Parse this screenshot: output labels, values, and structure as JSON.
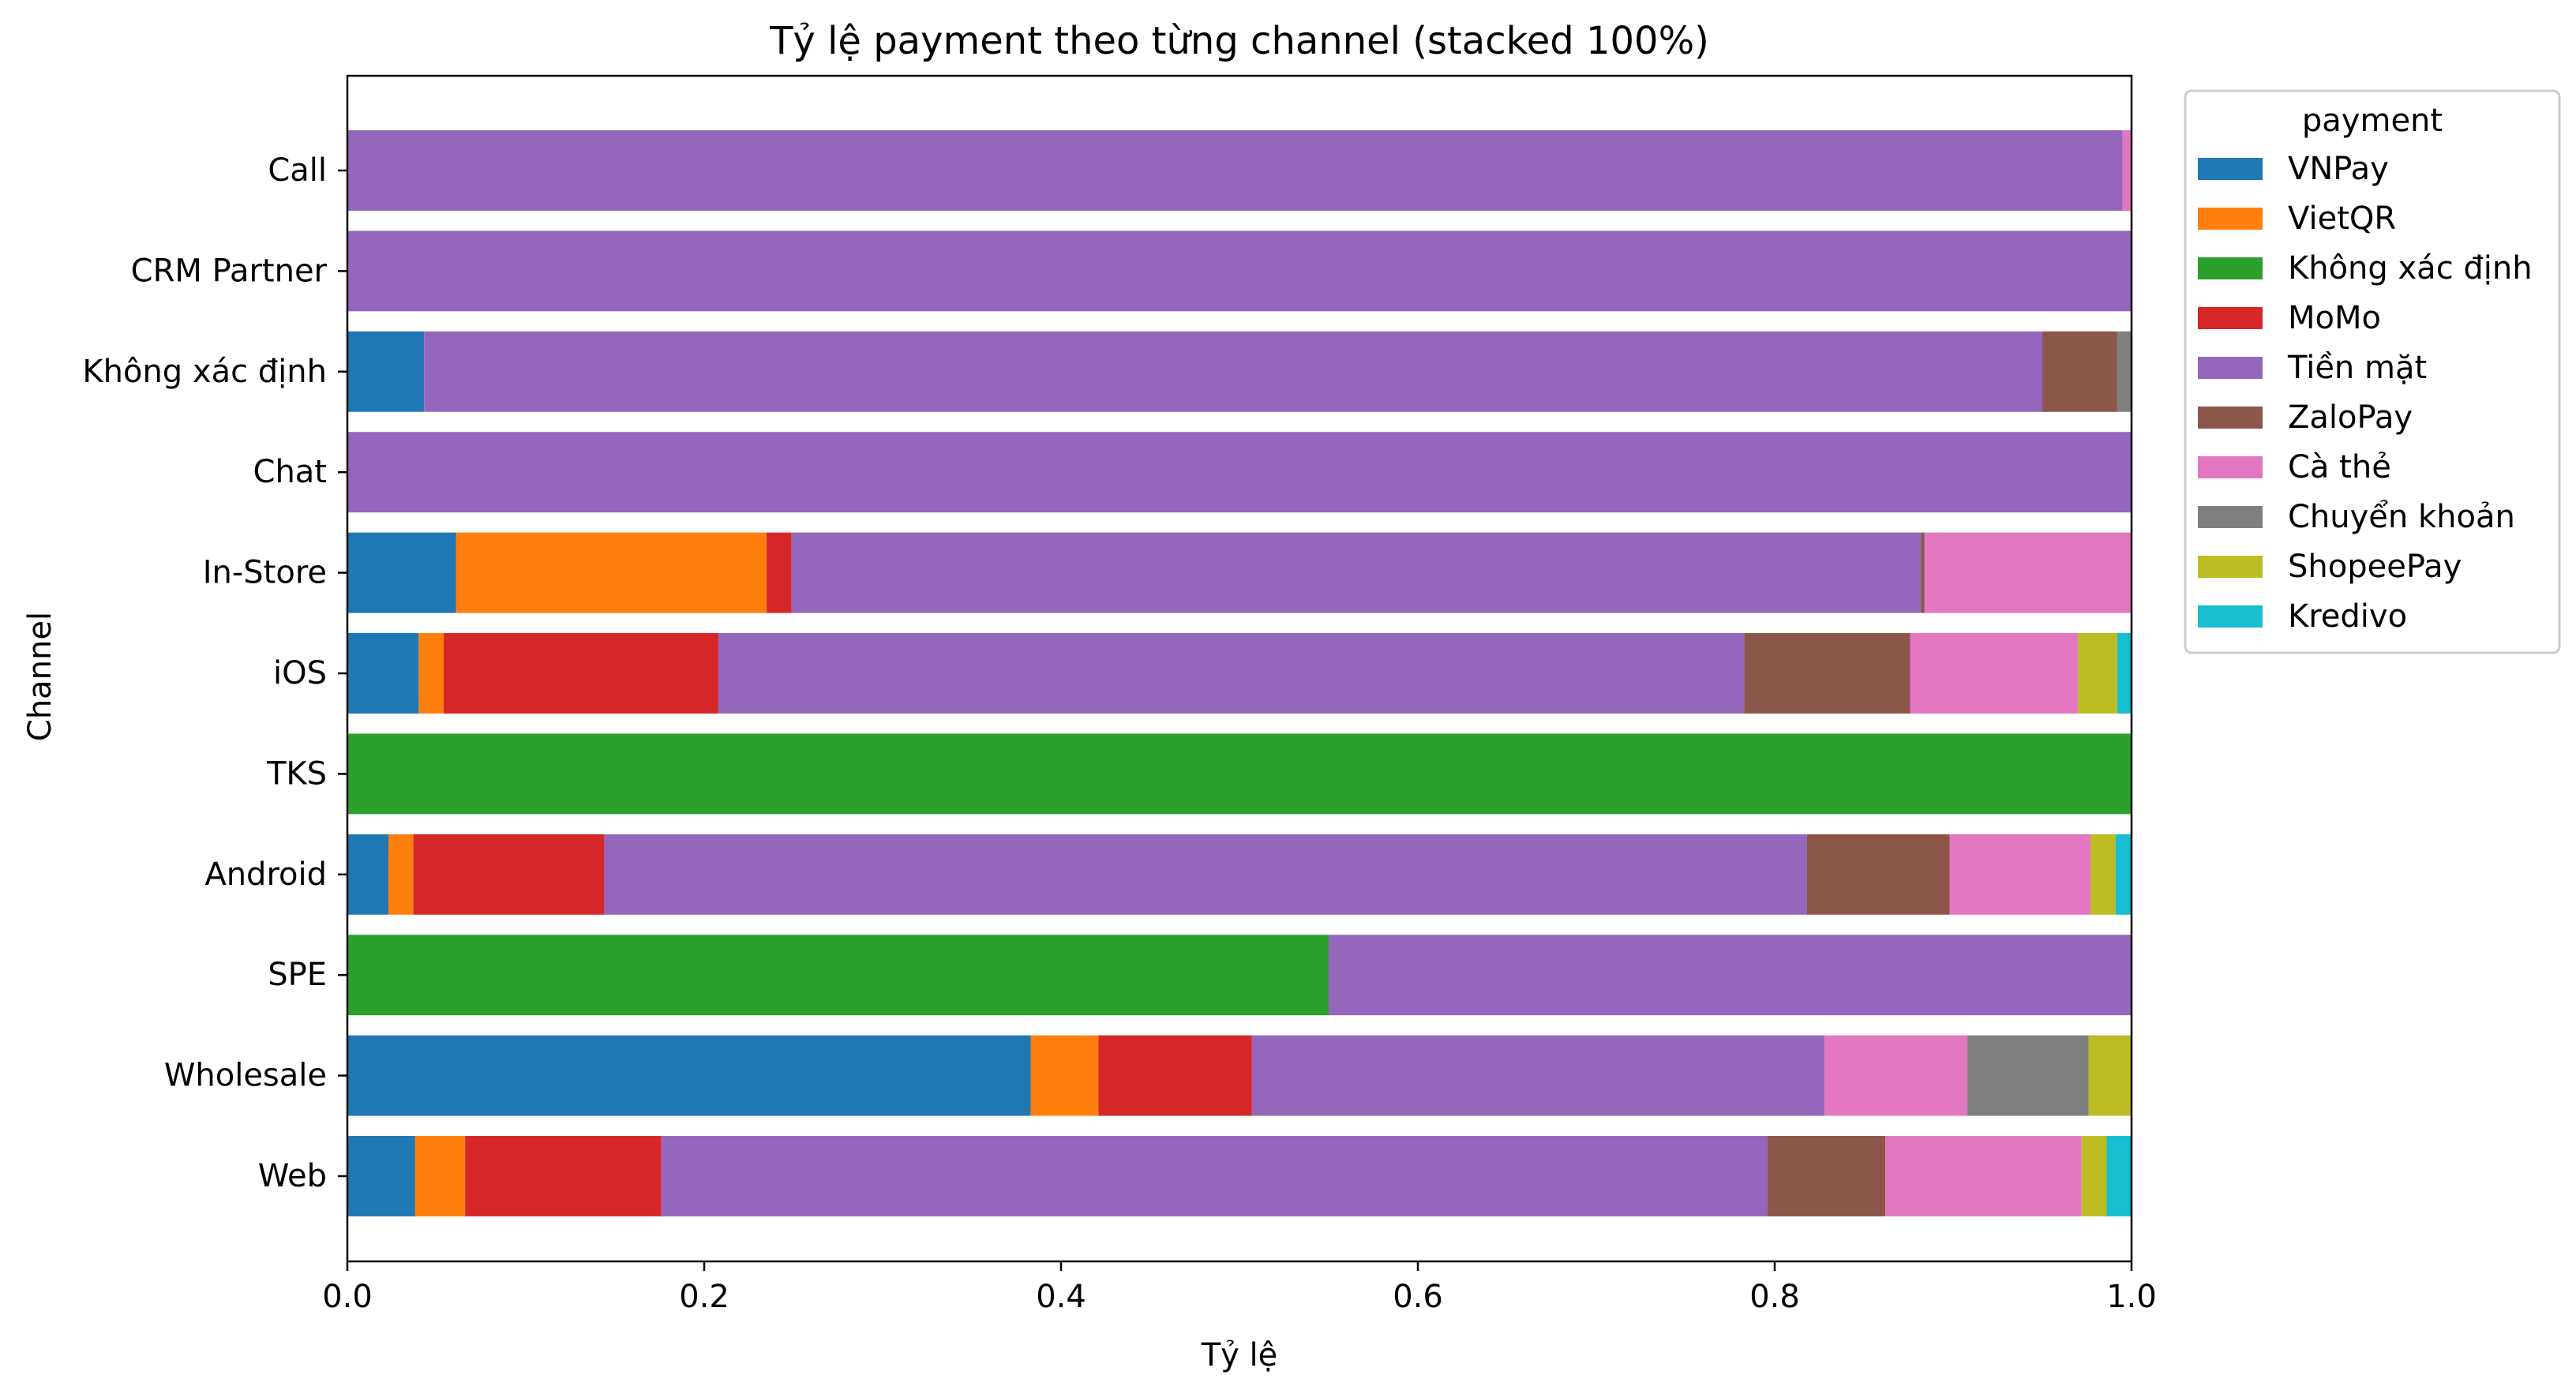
{
  "chart_data": {
    "type": "bar",
    "orientation": "horizontal",
    "stacked": "100%",
    "title": "Tỷ lệ payment theo từng channel (stacked 100%)",
    "xlabel": "Tỷ lệ",
    "ylabel": "Channel",
    "xlim": [
      0,
      1
    ],
    "xticks": [
      "0.0",
      "0.2",
      "0.4",
      "0.6",
      "0.8",
      "1.0"
    ],
    "grid": false,
    "legend_title": "payment",
    "legend_position": "outside-top-right",
    "categories": [
      "Call",
      "CRM Partner",
      "Không xác định",
      "Chat",
      "In-Store",
      "iOS",
      "TKS",
      "Android",
      "SPE",
      "Wholesale",
      "Web"
    ],
    "series": [
      {
        "name": "VNPay",
        "color": "#1f77b4",
        "values": [
          0,
          0,
          0.043,
          0,
          0.061,
          0.04,
          0,
          0.023,
          0,
          0.383,
          0.038
        ]
      },
      {
        "name": "VietQR",
        "color": "#ff7f0e",
        "values": [
          0,
          0,
          0,
          0,
          0.174,
          0.014,
          0,
          0.014,
          0,
          0.038,
          0.028
        ]
      },
      {
        "name": "Không xác định",
        "color": "#2ca02c",
        "values": [
          0,
          0,
          0,
          0,
          0,
          0,
          1.0,
          0,
          0.55,
          0,
          0
        ]
      },
      {
        "name": "MoMo",
        "color": "#d62728",
        "values": [
          0,
          0,
          0,
          0,
          0.014,
          0.154,
          0,
          0.107,
          0,
          0.086,
          0.11
        ]
      },
      {
        "name": "Tiền mặt",
        "color": "#9467bd",
        "values": [
          0.995,
          1.0,
          0.907,
          1.0,
          0.633,
          0.575,
          0,
          0.674,
          0.45,
          0.321,
          0.62
        ]
      },
      {
        "name": "ZaloPay",
        "color": "#8c564b",
        "values": [
          0,
          0,
          0.042,
          0,
          0.002,
          0.093,
          0,
          0.08,
          0,
          0,
          0.066
        ]
      },
      {
        "name": "Cà thẻ",
        "color": "#e377c2",
        "values": [
          0.005,
          0,
          0,
          0,
          0.116,
          0.094,
          0,
          0.079,
          0,
          0.08,
          0.11
        ]
      },
      {
        "name": "Chuyển khoản",
        "color": "#7f7f7f",
        "values": [
          0,
          0,
          0.008,
          0,
          0,
          0,
          0,
          0,
          0,
          0.068,
          0
        ]
      },
      {
        "name": "ShopeePay",
        "color": "#bcbd22",
        "values": [
          0,
          0,
          0,
          0,
          0,
          0.022,
          0,
          0.014,
          0,
          0.024,
          0.014
        ]
      },
      {
        "name": "Kredivo",
        "color": "#17becf",
        "values": [
          0,
          0,
          0,
          0,
          0,
          0.008,
          0,
          0.009,
          0,
          0,
          0.014
        ]
      }
    ]
  }
}
